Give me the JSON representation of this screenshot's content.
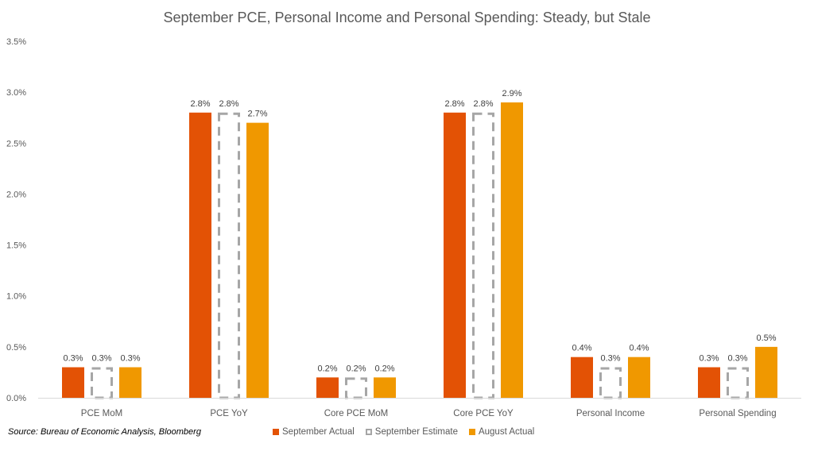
{
  "chart_data": {
    "type": "bar",
    "title": "September PCE, Personal Income and Personal Spending: Steady, but Stale",
    "xlabel": "",
    "ylabel": "",
    "ylim": [
      0,
      3.5
    ],
    "yticks": [
      "0.0%",
      "0.5%",
      "1.0%",
      "1.5%",
      "2.0%",
      "2.5%",
      "3.0%",
      "3.5%"
    ],
    "ytick_values": [
      0,
      0.5,
      1.0,
      1.5,
      2.0,
      2.5,
      3.0,
      3.5
    ],
    "grid": false,
    "legend_position": "bottom",
    "categories": [
      "PCE MoM",
      "PCE YoY",
      "Core PCE MoM",
      "Core PCE YoY",
      "Personal Income",
      "Personal Spending"
    ],
    "series": [
      {
        "name": "September Actual",
        "style": "solid",
        "color": "#E35205",
        "values": [
          0.3,
          2.8,
          0.2,
          2.8,
          0.4,
          0.3
        ],
        "labels": [
          "0.3%",
          "2.8%",
          "0.2%",
          "2.8%",
          "0.4%",
          "0.3%"
        ]
      },
      {
        "name": "September Estimate",
        "style": "dashed-outline",
        "color": "#A6A6A6",
        "values": [
          0.3,
          2.8,
          0.2,
          2.8,
          0.3,
          0.3
        ],
        "labels": [
          "0.3%",
          "2.8%",
          "0.2%",
          "2.8%",
          "0.3%",
          "0.3%"
        ]
      },
      {
        "name": "August Actual",
        "style": "solid",
        "color": "#F09800",
        "values": [
          0.3,
          2.7,
          0.2,
          2.9,
          0.4,
          0.5
        ],
        "labels": [
          "0.3%",
          "2.7%",
          "0.2%",
          "2.9%",
          "0.4%",
          "0.5%"
        ]
      }
    ]
  },
  "footer": {
    "source": "Source: Bureau of Economic Analysis, Bloomberg"
  },
  "colors": {
    "axis": "#D9D9D9",
    "text": "#595959"
  }
}
